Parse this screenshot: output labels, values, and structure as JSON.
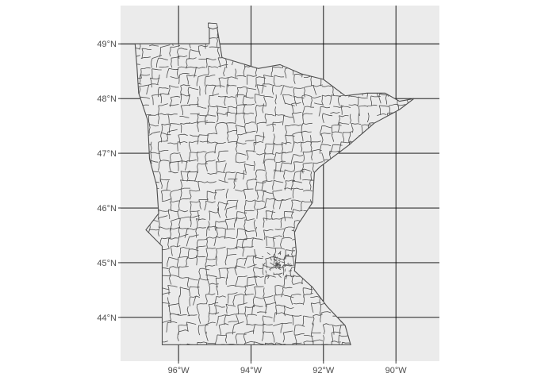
{
  "map": {
    "type": "choropleth-outline",
    "region": "Minnesota",
    "panel_background": "#ebebeb",
    "gridline_color": "#000000",
    "state_fill": "#ebebeb",
    "boundary_color": "#4d4d4d",
    "lon_range": [
      -97.6,
      -88.8
    ],
    "lat_range": [
      43.2,
      49.7
    ],
    "lon_ticks": [
      {
        "value": -96,
        "label": "96°W"
      },
      {
        "value": -94,
        "label": "94°W"
      },
      {
        "value": -92,
        "label": "92°W"
      },
      {
        "value": -90,
        "label": "90°W"
      }
    ],
    "lat_ticks": [
      {
        "value": 49,
        "label": "49°N"
      },
      {
        "value": 48,
        "label": "48°N"
      },
      {
        "value": 47,
        "label": "47°N"
      },
      {
        "value": 46,
        "label": "46°N"
      },
      {
        "value": 45,
        "label": "45°N"
      },
      {
        "value": 44,
        "label": "44°N"
      }
    ],
    "outline": [
      [
        -97.2,
        49.0
      ],
      [
        -95.15,
        49.0
      ],
      [
        -95.15,
        49.38
      ],
      [
        -94.95,
        49.35
      ],
      [
        -94.8,
        48.75
      ],
      [
        -93.8,
        48.55
      ],
      [
        -93.2,
        48.62
      ],
      [
        -92.6,
        48.45
      ],
      [
        -92.0,
        48.35
      ],
      [
        -91.4,
        48.05
      ],
      [
        -90.8,
        48.1
      ],
      [
        -90.3,
        48.1
      ],
      [
        -89.9,
        47.95
      ],
      [
        -89.5,
        48.0
      ],
      [
        -89.9,
        47.8
      ],
      [
        -90.6,
        47.55
      ],
      [
        -91.3,
        47.15
      ],
      [
        -92.1,
        46.75
      ],
      [
        -92.25,
        46.65
      ],
      [
        -92.3,
        46.1
      ],
      [
        -92.7,
        45.7
      ],
      [
        -92.8,
        45.55
      ],
      [
        -92.75,
        45.2
      ],
      [
        -92.8,
        44.85
      ],
      [
        -92.3,
        44.55
      ],
      [
        -91.9,
        44.2
      ],
      [
        -91.4,
        43.85
      ],
      [
        -91.25,
        43.5
      ],
      [
        -96.45,
        43.5
      ],
      [
        -96.45,
        45.3
      ],
      [
        -96.9,
        45.6
      ],
      [
        -96.55,
        45.9
      ],
      [
        -96.6,
        46.4
      ],
      [
        -96.8,
        46.9
      ],
      [
        -96.85,
        47.6
      ],
      [
        -97.1,
        48.1
      ],
      [
        -97.15,
        48.6
      ],
      [
        -97.2,
        49.0
      ]
    ],
    "island": [
      [
        -95.18,
        49.38
      ],
      [
        -94.95,
        49.37
      ],
      [
        -94.92,
        49.3
      ],
      [
        -95.05,
        49.27
      ],
      [
        -95.18,
        49.3
      ],
      [
        -95.18,
        49.38
      ]
    ],
    "metro_center": [
      -93.25,
      44.97
    ]
  }
}
